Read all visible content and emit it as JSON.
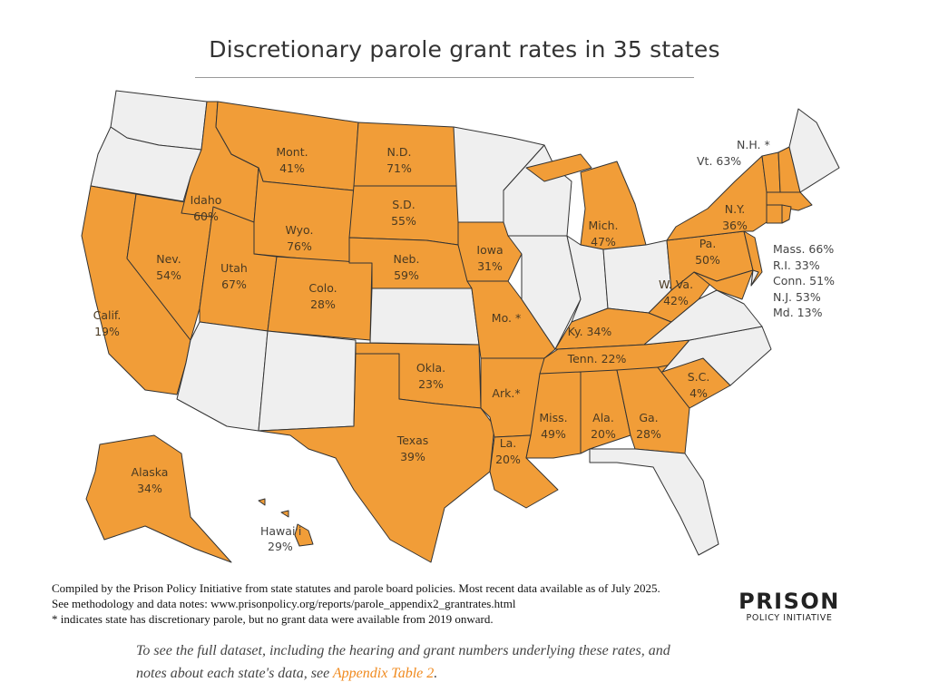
{
  "title": "Discretionary parole grant rates in 35 states",
  "colors": {
    "has_data": "#F19D38",
    "no_data": "#EFEFEF",
    "border": "#333333",
    "link": "#F08A1E"
  },
  "states": [
    {
      "id": "WA",
      "label": "",
      "rate": "",
      "parole": false
    },
    {
      "id": "OR",
      "label": "",
      "rate": "",
      "parole": false
    },
    {
      "id": "CA",
      "label": "Calif.",
      "rate": "19%",
      "parole": true
    },
    {
      "id": "NV",
      "label": "Nev.",
      "rate": "54%",
      "parole": true
    },
    {
      "id": "ID",
      "label": "Idaho",
      "rate": "60%",
      "parole": true
    },
    {
      "id": "MT",
      "label": "Mont.",
      "rate": "41%",
      "parole": true
    },
    {
      "id": "WY",
      "label": "Wyo.",
      "rate": "76%",
      "parole": true
    },
    {
      "id": "UT",
      "label": "Utah",
      "rate": "67%",
      "parole": true
    },
    {
      "id": "CO",
      "label": "Colo.",
      "rate": "28%",
      "parole": true
    },
    {
      "id": "AZ",
      "label": "",
      "rate": "",
      "parole": false
    },
    {
      "id": "NM",
      "label": "",
      "rate": "",
      "parole": false
    },
    {
      "id": "ND",
      "label": "N.D.",
      "rate": "71%",
      "parole": true
    },
    {
      "id": "SD",
      "label": "S.D.",
      "rate": "55%",
      "parole": true
    },
    {
      "id": "NE",
      "label": "Neb.",
      "rate": "59%",
      "parole": true
    },
    {
      "id": "KS",
      "label": "",
      "rate": "",
      "parole": false
    },
    {
      "id": "OK",
      "label": "Okla.",
      "rate": "23%",
      "parole": true
    },
    {
      "id": "TX",
      "label": "Texas",
      "rate": "39%",
      "parole": true
    },
    {
      "id": "MN",
      "label": "",
      "rate": "",
      "parole": false
    },
    {
      "id": "IA",
      "label": "Iowa",
      "rate": "31%",
      "parole": true
    },
    {
      "id": "MO",
      "label": "Mo. *",
      "rate": "",
      "parole": true
    },
    {
      "id": "AR",
      "label": "Ark.*",
      "rate": "",
      "parole": true
    },
    {
      "id": "LA",
      "label": "La.",
      "rate": "20%",
      "parole": true
    },
    {
      "id": "WI",
      "label": "",
      "rate": "",
      "parole": false
    },
    {
      "id": "IL",
      "label": "",
      "rate": "",
      "parole": false
    },
    {
      "id": "MIU",
      "label": "",
      "rate": "",
      "parole": true
    },
    {
      "id": "MI",
      "label": "Mich.",
      "rate": "47%",
      "parole": true
    },
    {
      "id": "IN",
      "label": "",
      "rate": "",
      "parole": false
    },
    {
      "id": "OH",
      "label": "",
      "rate": "",
      "parole": false
    },
    {
      "id": "KY",
      "label": "Ky. 34%",
      "rate": "",
      "parole": true
    },
    {
      "id": "TN",
      "label": "Tenn. 22%",
      "rate": "",
      "parole": true
    },
    {
      "id": "MS",
      "label": "Miss.",
      "rate": "49%",
      "parole": true
    },
    {
      "id": "AL",
      "label": "Ala.",
      "rate": "20%",
      "parole": true
    },
    {
      "id": "GA",
      "label": "Ga.",
      "rate": "28%",
      "parole": true
    },
    {
      "id": "FL",
      "label": "",
      "rate": "",
      "parole": false
    },
    {
      "id": "SC",
      "label": "S.C.",
      "rate": "4%",
      "parole": true
    },
    {
      "id": "NC",
      "label": "",
      "rate": "",
      "parole": false
    },
    {
      "id": "VA",
      "label": "",
      "rate": "",
      "parole": false
    },
    {
      "id": "WV",
      "label": "W. Va.",
      "rate": "42%",
      "parole": true
    },
    {
      "id": "PA",
      "label": "Pa.",
      "rate": "50%",
      "parole": true
    },
    {
      "id": "NY",
      "label": "N.Y.",
      "rate": "36%",
      "parole": true
    },
    {
      "id": "NJ",
      "label": "",
      "rate": "",
      "parole": true
    },
    {
      "id": "MD",
      "label": "",
      "rate": "",
      "parole": true
    },
    {
      "id": "DE",
      "label": "",
      "rate": "",
      "parole": false
    },
    {
      "id": "VT",
      "label": "",
      "rate": "",
      "parole": true
    },
    {
      "id": "NH",
      "label": "",
      "rate": "",
      "parole": true
    },
    {
      "id": "ME",
      "label": "",
      "rate": "",
      "parole": false
    },
    {
      "id": "MA",
      "label": "",
      "rate": "",
      "parole": true
    },
    {
      "id": "CT",
      "label": "",
      "rate": "",
      "parole": true
    },
    {
      "id": "RI",
      "label": "",
      "rate": "",
      "parole": true
    },
    {
      "id": "AK",
      "label": "Alaska",
      "rate": "34%",
      "parole": true
    },
    {
      "id": "HI",
      "label": "",
      "rate": "",
      "parole": true
    }
  ],
  "external_labels": {
    "nh": "N.H. *",
    "vt": "Vt. 63%",
    "hawaii_name": "Hawai'i",
    "hawaii_rate": "29%",
    "northeast": [
      "Mass. 66%",
      "R.I. 33%",
      "Conn. 51%",
      "N.J. 53%",
      "Md. 13%"
    ]
  },
  "notes": [
    "Compiled by the Prison Policy Initiative from state statutes and parole board policies. Most recent data available as of July 2025.",
    "See methodology and data notes: www.prisonpolicy.org/reports/parole_appendix2_grantrates.html",
    "* indicates state has discretionary parole, but no grant data were available from 2019 onward."
  ],
  "logo": {
    "line1": "PRISON",
    "line2": "POLICY INITIATIVE"
  },
  "cta": {
    "text1": "To see the full dataset, including the hearing and grant numbers underlying these rates, and",
    "text2": "notes about each state's data, see ",
    "link": "Appendix Table 2",
    "end": "."
  }
}
